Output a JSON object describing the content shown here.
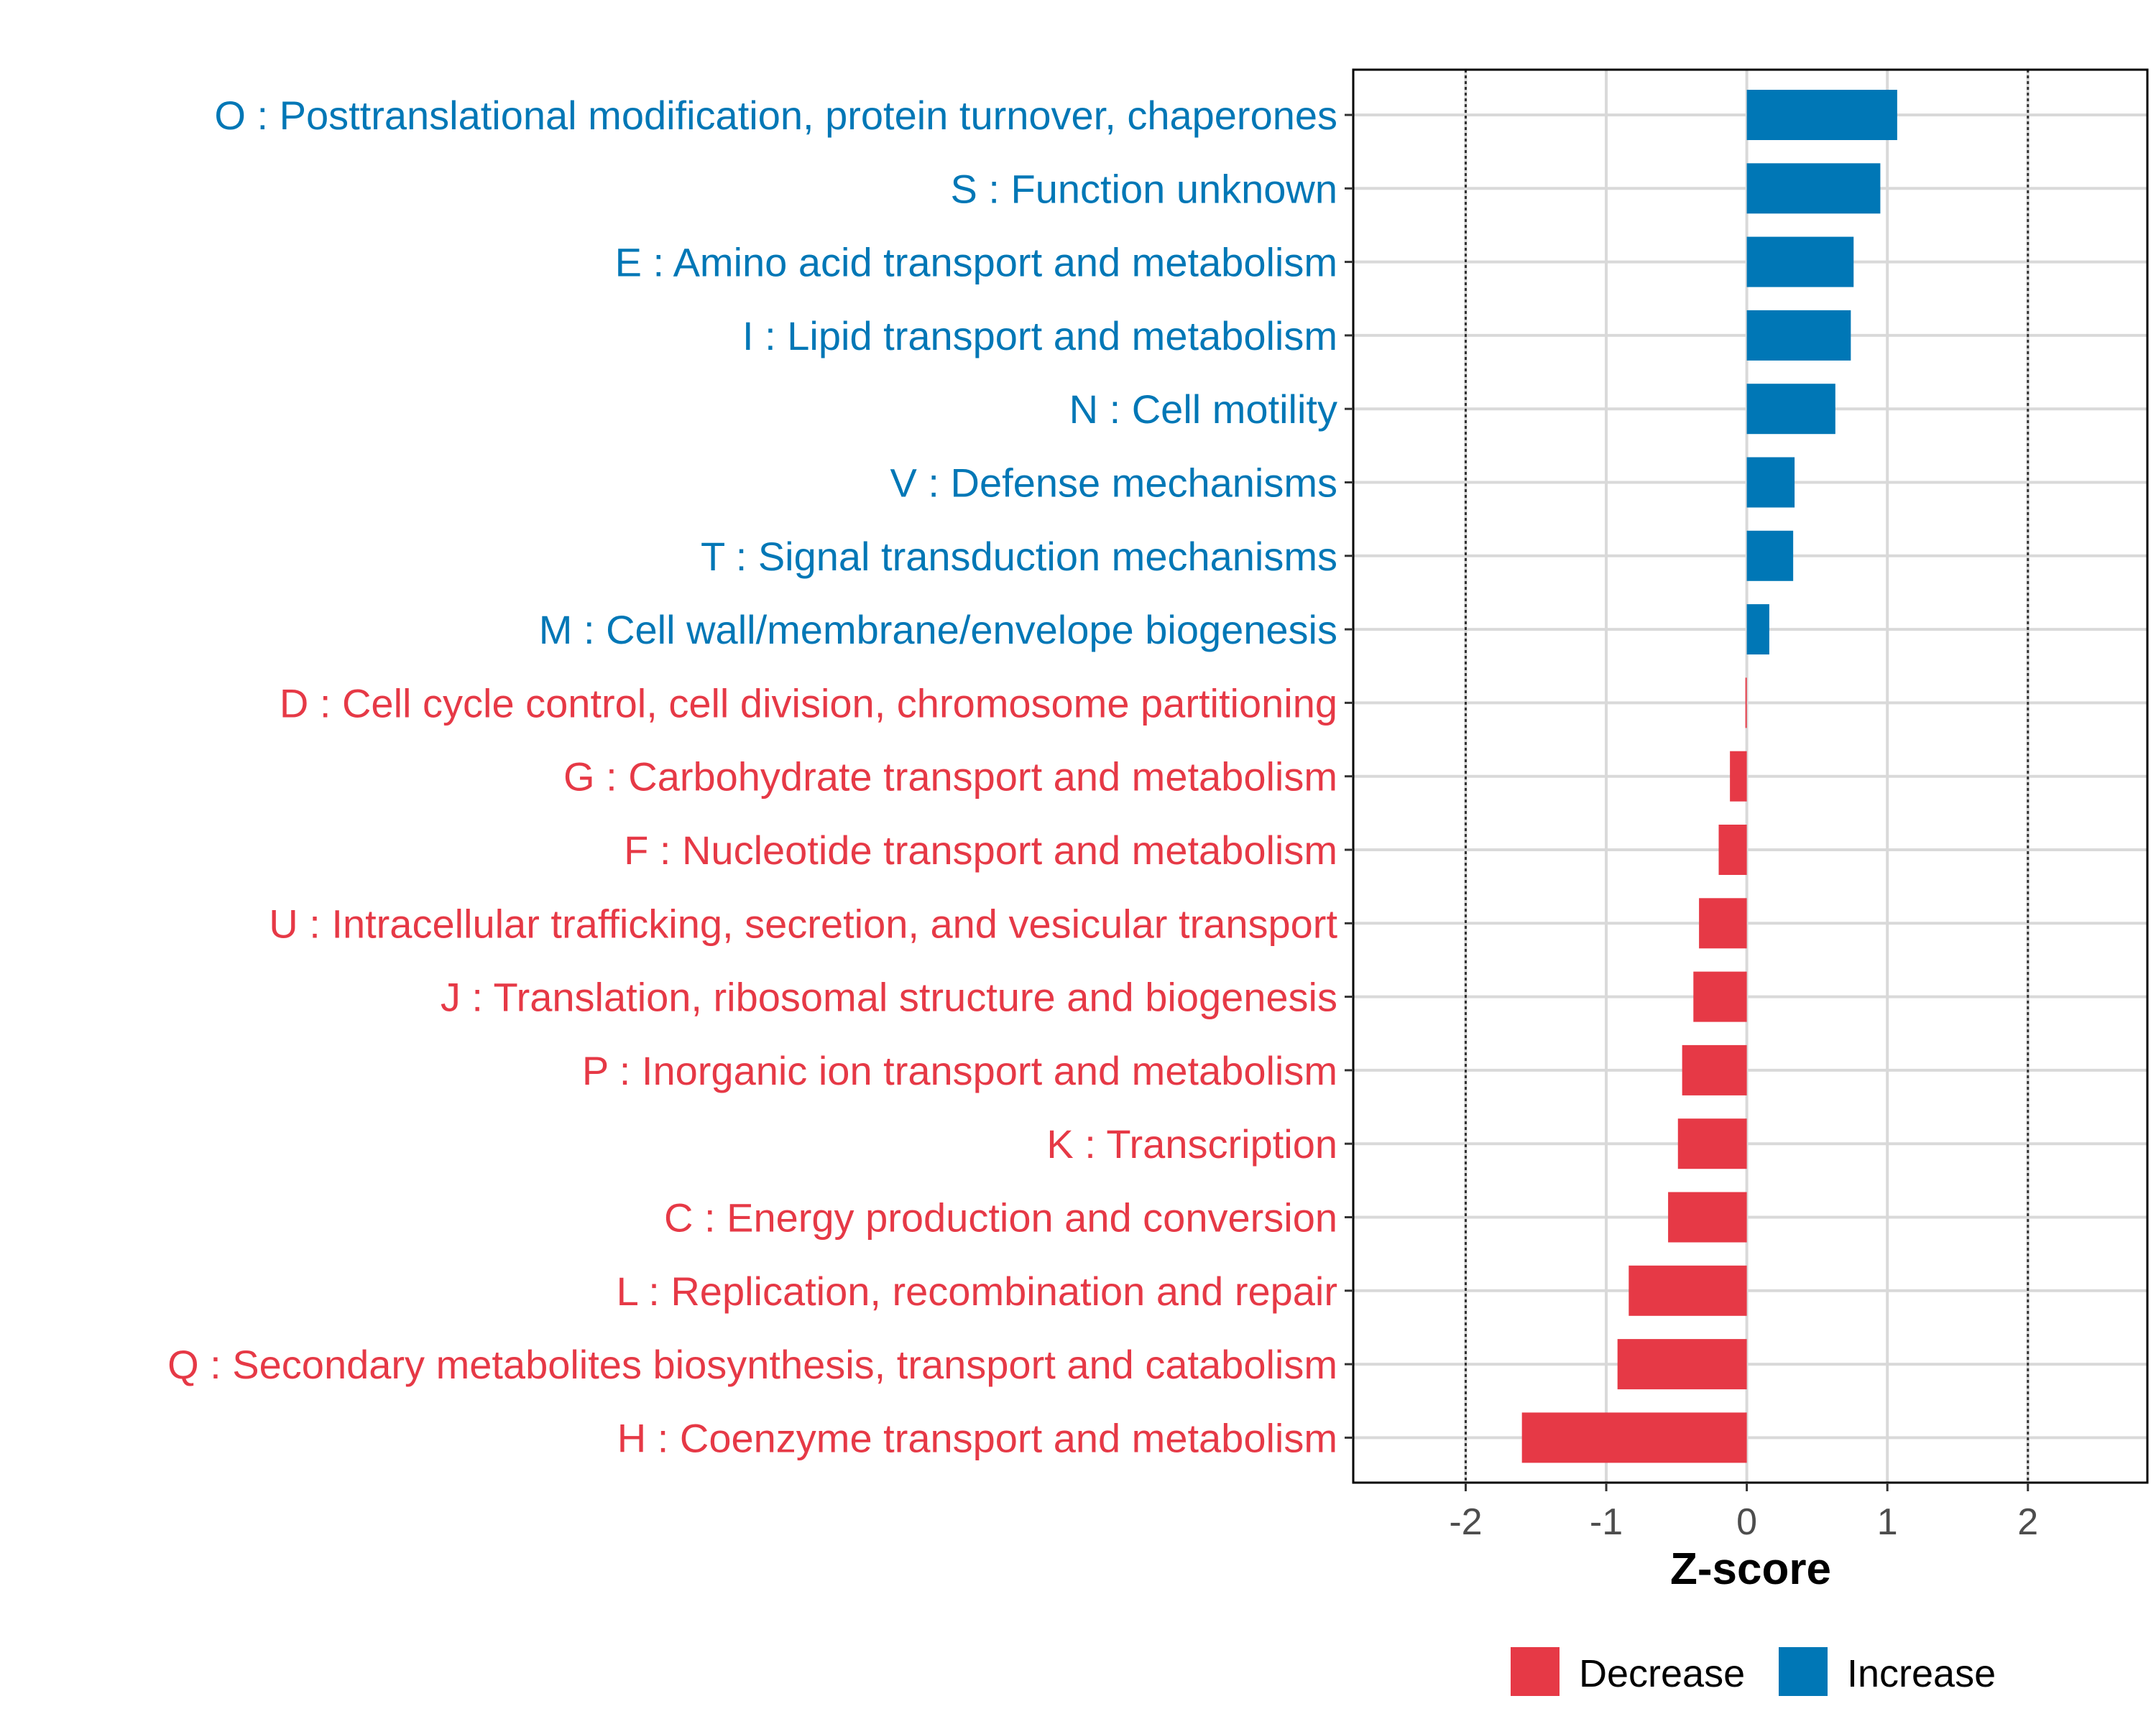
{
  "chart_data": {
    "type": "bar",
    "orientation": "horizontal",
    "title": "",
    "xlabel": "Z-score",
    "ylabel": "",
    "xlim": [
      -2.8,
      2.85
    ],
    "x_ticks": [
      -2,
      -1,
      0,
      1,
      2
    ],
    "x_tick_labels": [
      "-2",
      "-1",
      "0",
      "1",
      "2"
    ],
    "reference_lines": [
      -2,
      2
    ],
    "grid": true,
    "legend_position": "bottom",
    "colors": {
      "Decrease": "#E63946",
      "Increase": "#0077B6"
    },
    "categories": [
      "O : Posttranslational modification, protein turnover, chaperones",
      "S : Function unknown",
      "E : Amino acid transport and metabolism",
      "I : Lipid transport and metabolism",
      "N : Cell motility",
      "V : Defense mechanisms",
      "T : Signal transduction mechanisms",
      "M : Cell wall/membrane/envelope biogenesis",
      "D : Cell cycle control, cell division, chromosome partitioning",
      "G : Carbohydrate transport and metabolism",
      "F : Nucleotide transport and metabolism",
      "U : Intracellular trafficking, secretion, and vesicular transport",
      "J : Translation, ribosomal structure and biogenesis",
      "P : Inorganic ion transport and metabolism",
      "K : Transcription",
      "C : Energy production and conversion",
      "L : Replication, recombination and repair",
      "Q : Secondary metabolites biosynthesis, transport and catabolism",
      "H : Coenzyme transport and metabolism"
    ],
    "values": [
      1.07,
      0.95,
      0.76,
      0.74,
      0.63,
      0.34,
      0.33,
      0.16,
      -0.01,
      -0.12,
      -0.2,
      -0.34,
      -0.38,
      -0.46,
      -0.49,
      -0.56,
      -0.84,
      -0.92,
      -1.6
    ],
    "groups": [
      "Increase",
      "Increase",
      "Increase",
      "Increase",
      "Increase",
      "Increase",
      "Increase",
      "Increase",
      "Decrease",
      "Decrease",
      "Decrease",
      "Decrease",
      "Decrease",
      "Decrease",
      "Decrease",
      "Decrease",
      "Decrease",
      "Decrease",
      "Decrease"
    ],
    "legend": [
      "Decrease",
      "Increase"
    ]
  }
}
